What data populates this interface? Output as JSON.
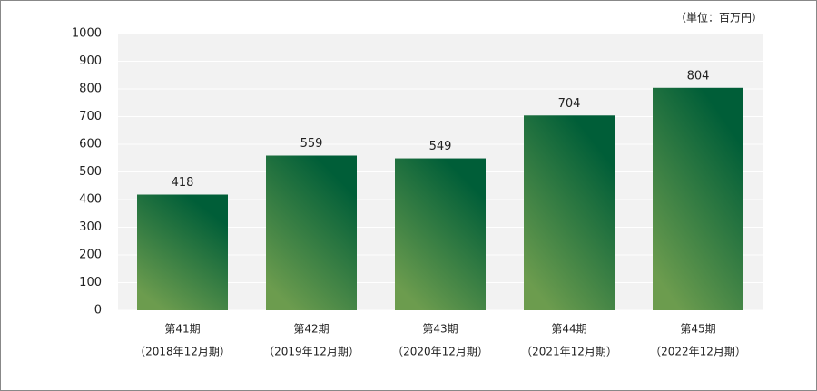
{
  "chart_data": {
    "type": "bar",
    "unit_label": "（単位：百万円）",
    "categories": [
      [
        "第41期",
        "（2018年12月期）"
      ],
      [
        "第42期",
        "（2019年12月期）"
      ],
      [
        "第43期",
        "（2020年12月期）"
      ],
      [
        "第44期",
        "（2021年12月期）"
      ],
      [
        "第45期",
        "（2022年12月期）"
      ]
    ],
    "values": [
      418,
      559,
      549,
      704,
      804
    ],
    "colors": [
      "#005e38",
      "#6c9c4e"
    ],
    "ylim": [
      0,
      1000
    ],
    "yticks": [
      0,
      100,
      200,
      300,
      400,
      500,
      600,
      700,
      800,
      900,
      1000
    ],
    "grid": true
  }
}
